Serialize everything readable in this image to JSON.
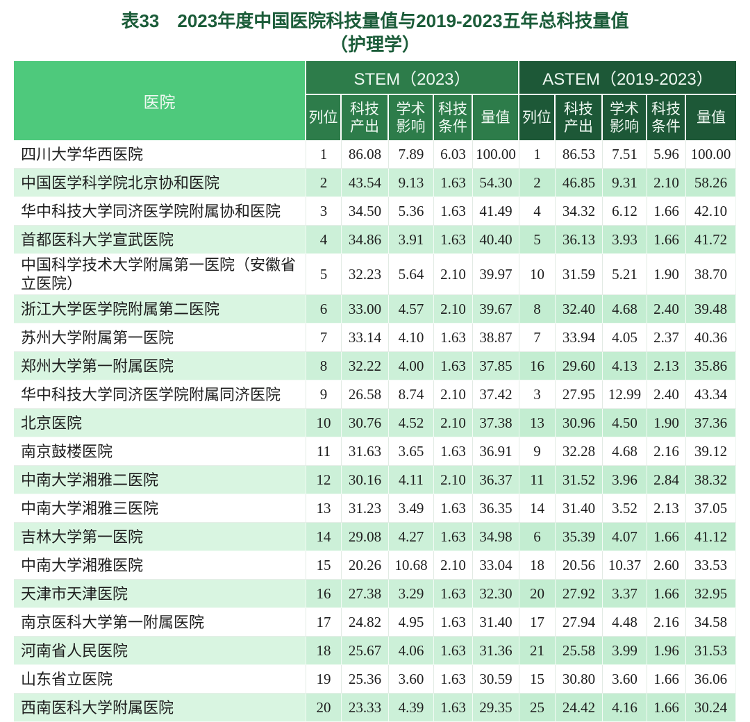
{
  "title": {
    "line1": "表33　2023年度中国医院科技量值与2019-2023五年总科技量值",
    "line2": "（护理学）"
  },
  "colors": {
    "title_text": "#1b5c39",
    "hospital_header_bg": "#4ec97c",
    "stem_header_bg": "#2d7c4a",
    "astem_header_bg": "#1d5837",
    "header_text": "#eef8f1",
    "alt_row_name_bg": "#d9f5e1",
    "alt_row_stem_bg": "#ccf0d8",
    "alt_row_astem_bg": "#c3edd1"
  },
  "table": {
    "hospital_header": "医院",
    "groups": [
      {
        "label": "STEM（2023）",
        "sub": [
          "列位",
          "科技\n产出",
          "学术\n影响",
          "科技\n条件",
          "量值"
        ]
      },
      {
        "label": "ASTEM（2019-2023）",
        "sub": [
          "列位",
          "科技\n产出",
          "学术\n影响",
          "科技\n条件",
          "量值"
        ]
      }
    ],
    "rows": [
      {
        "hospital": "四川大学华西医院",
        "stem": [
          "1",
          "86.08",
          "7.89",
          "6.03",
          "100.00"
        ],
        "astem": [
          "1",
          "86.53",
          "7.51",
          "5.96",
          "100.00"
        ]
      },
      {
        "hospital": "中国医学科学院北京协和医院",
        "stem": [
          "2",
          "43.54",
          "9.13",
          "1.63",
          "54.30"
        ],
        "astem": [
          "2",
          "46.85",
          "9.31",
          "2.10",
          "58.26"
        ]
      },
      {
        "hospital": "华中科技大学同济医学院附属协和医院",
        "stem": [
          "3",
          "34.50",
          "5.36",
          "1.63",
          "41.49"
        ],
        "astem": [
          "4",
          "34.32",
          "6.12",
          "1.66",
          "42.10"
        ]
      },
      {
        "hospital": "首都医科大学宣武医院",
        "stem": [
          "4",
          "34.86",
          "3.91",
          "1.63",
          "40.40"
        ],
        "astem": [
          "5",
          "36.13",
          "3.93",
          "1.66",
          "41.72"
        ]
      },
      {
        "hospital": "中国科学技术大学附属第一医院（安徽省立医院）",
        "stem": [
          "5",
          "32.23",
          "5.64",
          "2.10",
          "39.97"
        ],
        "astem": [
          "10",
          "31.59",
          "5.21",
          "1.90",
          "38.70"
        ]
      },
      {
        "hospital": "浙江大学医学院附属第二医院",
        "stem": [
          "6",
          "33.00",
          "4.57",
          "2.10",
          "39.67"
        ],
        "astem": [
          "8",
          "32.40",
          "4.68",
          "2.40",
          "39.48"
        ]
      },
      {
        "hospital": "苏州大学附属第一医院",
        "stem": [
          "7",
          "33.14",
          "4.10",
          "1.63",
          "38.87"
        ],
        "astem": [
          "7",
          "33.94",
          "4.05",
          "2.37",
          "40.36"
        ]
      },
      {
        "hospital": "郑州大学第一附属医院",
        "stem": [
          "8",
          "32.22",
          "4.00",
          "1.63",
          "37.85"
        ],
        "astem": [
          "16",
          "29.60",
          "4.13",
          "2.13",
          "35.86"
        ]
      },
      {
        "hospital": "华中科技大学同济医学院附属同济医院",
        "stem": [
          "9",
          "26.58",
          "8.74",
          "2.10",
          "37.42"
        ],
        "astem": [
          "3",
          "27.95",
          "12.99",
          "2.40",
          "43.34"
        ]
      },
      {
        "hospital": "北京医院",
        "stem": [
          "10",
          "30.76",
          "4.52",
          "2.10",
          "37.38"
        ],
        "astem": [
          "13",
          "30.96",
          "4.50",
          "1.90",
          "37.36"
        ]
      },
      {
        "hospital": "南京鼓楼医院",
        "stem": [
          "11",
          "31.63",
          "3.65",
          "1.63",
          "36.91"
        ],
        "astem": [
          "9",
          "32.28",
          "4.68",
          "2.16",
          "39.12"
        ]
      },
      {
        "hospital": "中南大学湘雅二医院",
        "stem": [
          "12",
          "30.16",
          "4.11",
          "2.10",
          "36.37"
        ],
        "astem": [
          "11",
          "31.52",
          "3.96",
          "2.84",
          "38.32"
        ]
      },
      {
        "hospital": "中南大学湘雅三医院",
        "stem": [
          "13",
          "31.23",
          "3.49",
          "1.63",
          "36.35"
        ],
        "astem": [
          "14",
          "31.40",
          "3.52",
          "2.13",
          "37.05"
        ]
      },
      {
        "hospital": "吉林大学第一医院",
        "stem": [
          "14",
          "29.08",
          "4.27",
          "1.63",
          "34.98"
        ],
        "astem": [
          "6",
          "35.39",
          "4.07",
          "1.66",
          "41.12"
        ]
      },
      {
        "hospital": "中南大学湘雅医院",
        "stem": [
          "15",
          "20.26",
          "10.68",
          "2.10",
          "33.04"
        ],
        "astem": [
          "18",
          "20.56",
          "10.37",
          "2.60",
          "33.53"
        ]
      },
      {
        "hospital": "天津市天津医院",
        "stem": [
          "16",
          "27.38",
          "3.29",
          "1.63",
          "32.30"
        ],
        "astem": [
          "20",
          "27.92",
          "3.37",
          "1.66",
          "32.95"
        ]
      },
      {
        "hospital": "南京医科大学第一附属医院",
        "stem": [
          "17",
          "24.82",
          "4.95",
          "1.63",
          "31.40"
        ],
        "astem": [
          "17",
          "27.94",
          "4.48",
          "2.16",
          "34.58"
        ]
      },
      {
        "hospital": "河南省人民医院",
        "stem": [
          "18",
          "25.67",
          "4.06",
          "1.63",
          "31.36"
        ],
        "astem": [
          "21",
          "25.58",
          "3.99",
          "1.96",
          "31.53"
        ]
      },
      {
        "hospital": "山东省立医院",
        "stem": [
          "19",
          "25.36",
          "3.60",
          "1.63",
          "30.59"
        ],
        "astem": [
          "15",
          "30.80",
          "3.60",
          "1.66",
          "36.06"
        ]
      },
      {
        "hospital": "西南医科大学附属医院",
        "stem": [
          "20",
          "23.33",
          "4.39",
          "1.63",
          "29.35"
        ],
        "astem": [
          "25",
          "24.42",
          "4.16",
          "1.66",
          "30.24"
        ]
      }
    ]
  }
}
